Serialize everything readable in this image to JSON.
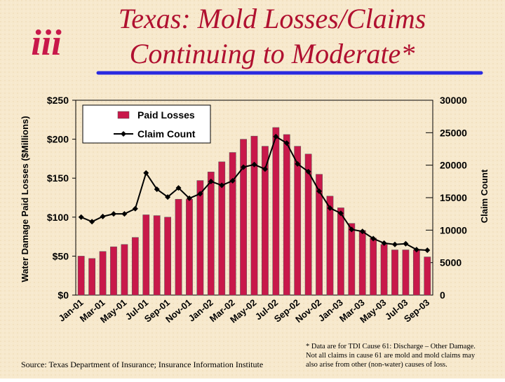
{
  "chart_data": {
    "type": "bar-line",
    "logo": "iii",
    "title_lines": [
      "Texas: Mold Losses/Claims",
      "Continuing to Moderate*"
    ],
    "y_label": "Water Damage Paid Losses ($Millions)",
    "y2_label": "Claim Count",
    "categories": [
      "Jan-01",
      null,
      "Mar-01",
      null,
      "May-01",
      null,
      "Jul-01",
      null,
      "Sep-01",
      null,
      "Nov-01",
      null,
      "Jan-02",
      null,
      "Mar-02",
      null,
      "May-02",
      null,
      "Jul-02",
      null,
      "Sep-02",
      null,
      "Nov-02",
      null,
      "Jan-03",
      null,
      "Mar-03",
      null,
      "May-03",
      null,
      "Jul-03",
      null,
      "Sep-03"
    ],
    "series": [
      {
        "name": "Paid Losses",
        "color": "#c8184a",
        "kind": "bar",
        "values": [
          50,
          47,
          56,
          62,
          65,
          74,
          103,
          102,
          100,
          123,
          123,
          147,
          158,
          171,
          183,
          200,
          204,
          191,
          215,
          206,
          191,
          181,
          155,
          127,
          112,
          92,
          83,
          73,
          65,
          58,
          58,
          58,
          49
        ]
      },
      {
        "name": "Claim Count",
        "color": "#000000",
        "kind": "line",
        "axis": "y2",
        "values": [
          12000,
          11300,
          12100,
          12500,
          12500,
          13300,
          18800,
          16300,
          15100,
          16500,
          14900,
          15600,
          17500,
          16900,
          17600,
          19700,
          20100,
          19400,
          24400,
          23400,
          20200,
          19000,
          16000,
          13400,
          12600,
          10100,
          9800,
          8700,
          8000,
          7800,
          7900,
          7000,
          6900
        ]
      }
    ],
    "ylim": [
      0,
      250
    ],
    "yticks": [
      {
        "value": 0,
        "label": "$0"
      },
      {
        "value": 50,
        "label": "$50"
      },
      {
        "value": 100,
        "label": "$100"
      },
      {
        "value": 150,
        "label": "$150"
      },
      {
        "value": 200,
        "label": "$200"
      },
      {
        "value": 250,
        "label": "$250"
      }
    ],
    "y2lim": [
      0,
      30000
    ],
    "y2ticks": [
      0,
      5000,
      10000,
      15000,
      20000,
      25000,
      30000
    ],
    "source": "Source: Texas Department of Insurance; Insurance Information Institute",
    "footnote_lines": [
      "* Data are for TDI Cause 61: Discharge – Other Damage.",
      "Not all claims in cause 61 are mold and mold claims may",
      "also arise from other (non-water) causes of loss."
    ]
  }
}
